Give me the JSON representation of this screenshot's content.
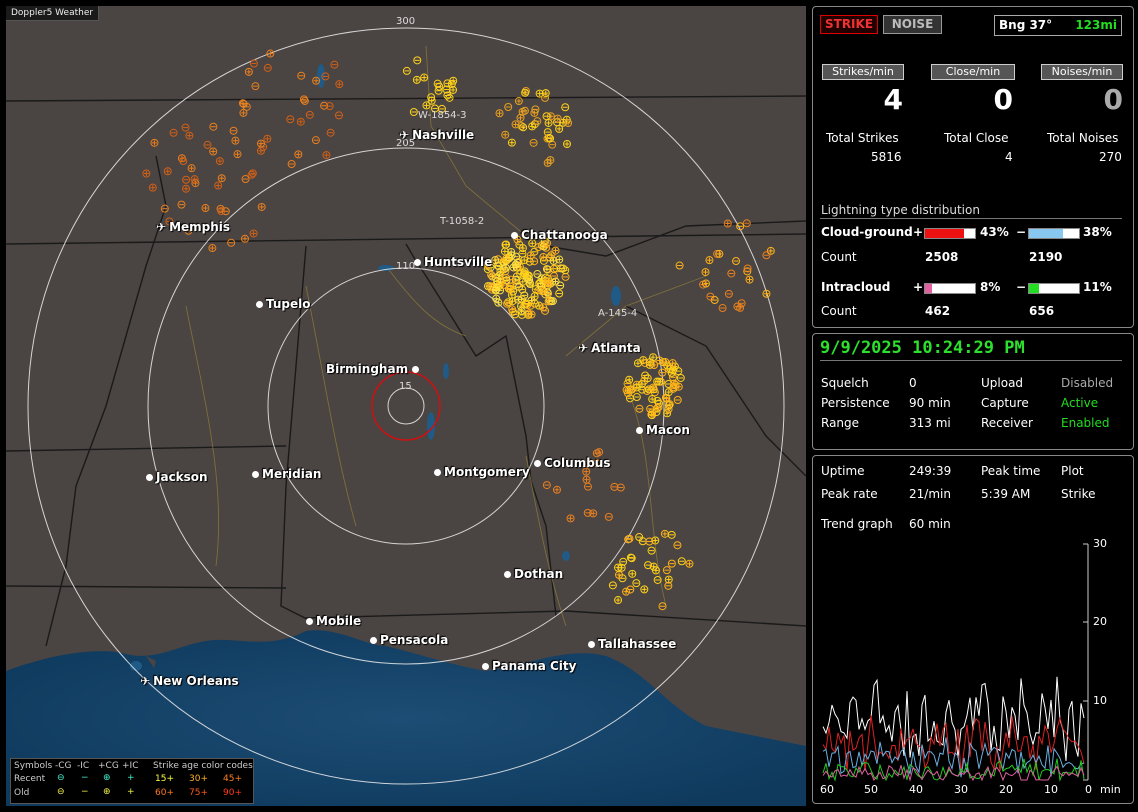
{
  "map": {
    "title_tag": "Doppler5 Weather",
    "range_labels": [
      "300",
      "205",
      "110",
      "15"
    ],
    "cities": [
      {
        "name": "Nashville",
        "kind": "airport"
      },
      {
        "name": "Memphis",
        "kind": "airport"
      },
      {
        "name": "Chattanooga",
        "kind": "city"
      },
      {
        "name": "Huntsville",
        "kind": "city"
      },
      {
        "name": "Tupelo",
        "kind": "city"
      },
      {
        "name": "Atlanta",
        "kind": "airport"
      },
      {
        "name": "Birmingham",
        "kind": "city"
      },
      {
        "name": "Macon",
        "kind": "city"
      },
      {
        "name": "Jackson",
        "kind": "city"
      },
      {
        "name": "Meridian",
        "kind": "city"
      },
      {
        "name": "Montgomery",
        "kind": "city"
      },
      {
        "name": "Columbus",
        "kind": "city"
      },
      {
        "name": "Dothan",
        "kind": "city"
      },
      {
        "name": "Mobile",
        "kind": "city"
      },
      {
        "name": "Pensacola",
        "kind": "city"
      },
      {
        "name": "Tallahassee",
        "kind": "city"
      },
      {
        "name": "Panama City",
        "kind": "city"
      },
      {
        "name": "New Orleans",
        "kind": "airport"
      }
    ],
    "markers": [
      "W-1854-3",
      "T-1058-2",
      "A-145-4"
    ],
    "legend": {
      "symbols_label": "Symbols",
      "cols": [
        "-CG",
        "-IC",
        "+CG",
        "+IC"
      ],
      "recent_label": "Recent",
      "old_label": "Old",
      "age_title": "Strike age color codes",
      "recent_ages": [
        "15+",
        "30+",
        "45+"
      ],
      "old_ages": [
        "60+",
        "75+",
        "90+"
      ],
      "age_colors_recent": [
        "#ffff40",
        "#ffb020",
        "#ff8020"
      ],
      "age_colors_old": [
        "#ff7a20",
        "#ff5a1a",
        "#ff3a1a"
      ]
    }
  },
  "top": {
    "strike_btn": "STRIKE",
    "noise_btn": "NOISE",
    "bearing": "Bng 37°",
    "distance": "123mi",
    "strikes_min_label": "Strikes/min",
    "close_min_label": "Close/min",
    "noises_min_label": "Noises/min",
    "strikes_min": "4",
    "close_min": "0",
    "noises_min": "0",
    "total_strikes_label": "Total Strikes",
    "total_close_label": "Total Close",
    "total_noises_label": "Total Noises",
    "total_strikes": "5816",
    "total_close": "4",
    "total_noises": "270",
    "dist_title": "Lightning type distribution",
    "cg_label": "Cloud-ground",
    "ic_label": "Intracloud",
    "count_label": "Count",
    "cg_pos_pct": "43%",
    "cg_neg_pct": "38%",
    "cg_pos_count": "2508",
    "cg_neg_count": "2190",
    "ic_pos_pct": "8%",
    "ic_neg_pct": "11%",
    "ic_pos_count": "462",
    "ic_neg_count": "656",
    "bar_levels": {
      "cg_pos": 0.43,
      "cg_neg": 0.38,
      "ic_pos": 0.08,
      "ic_neg": 0.11
    },
    "bar_colors": {
      "cg_pos": "#ee1111",
      "cg_neg": "#88c8f0",
      "ic_pos": "#e060a0",
      "ic_neg": "#22dd22"
    }
  },
  "status": {
    "datetime": "9/9/2025 10:24:29 PM",
    "squelch_label": "Squelch",
    "squelch": "0",
    "upload_label": "Upload",
    "upload": "Disabled",
    "persistence_label": "Persistence",
    "persistence": "90 min",
    "capture_label": "Capture",
    "capture": "Active",
    "range_label": "Range",
    "range": "313 mi",
    "receiver_label": "Receiver",
    "receiver": "Enabled"
  },
  "trend": {
    "uptime_label": "Uptime",
    "uptime": "249:39",
    "peak_time_label": "Peak time",
    "peak_time": "5:39 AM",
    "plot_label": "Plot",
    "plot": "Strike",
    "peak_rate_label": "Peak rate",
    "peak_rate": "21/min",
    "trend_label": "Trend graph",
    "trend": "60 min",
    "y_ticks": [
      "30",
      "20",
      "10"
    ],
    "x_ticks": [
      "60",
      "50",
      "40",
      "30",
      "20",
      "10",
      "0"
    ],
    "x_unit": "min"
  }
}
